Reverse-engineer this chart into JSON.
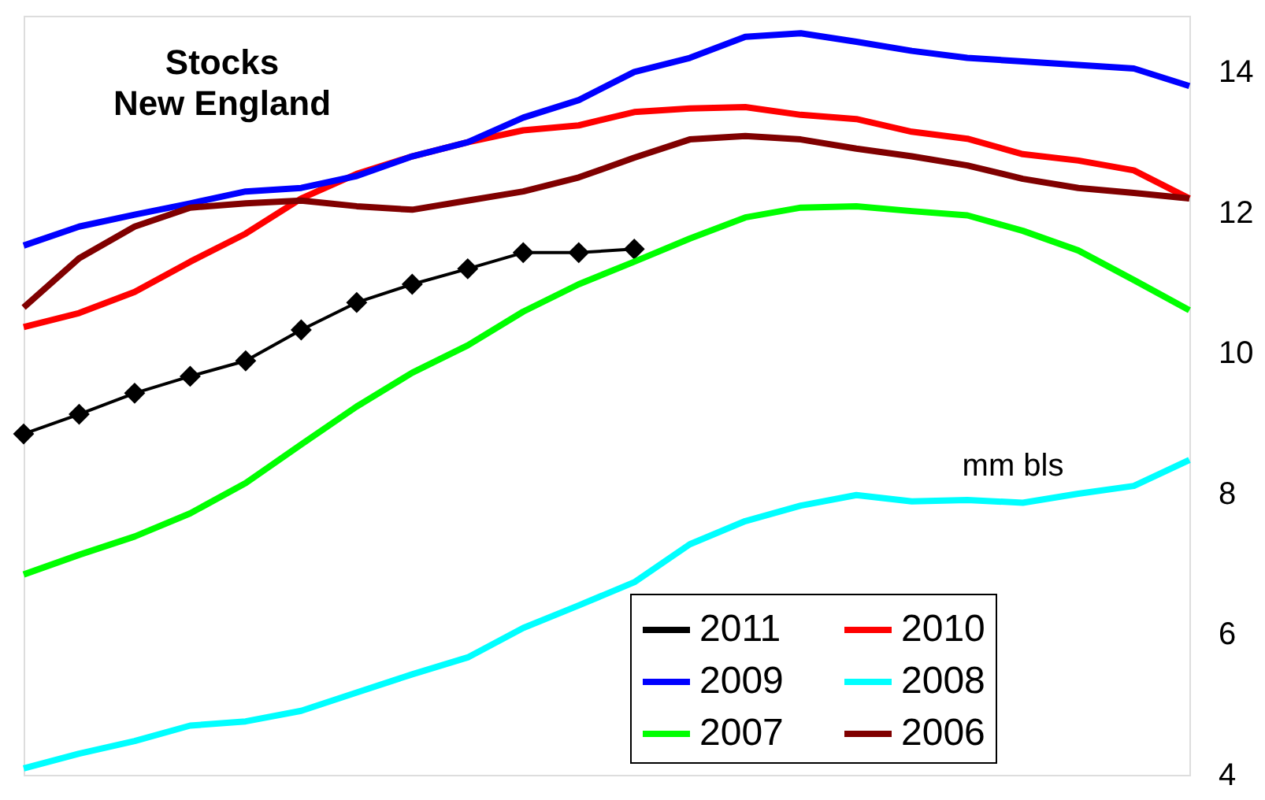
{
  "chart_data": {
    "type": "line",
    "title": "Stocks New England",
    "annotations": [
      "mm bls"
    ],
    "categories": [
      null,
      null,
      null,
      null,
      null,
      null,
      null,
      null,
      null,
      null,
      null,
      null,
      null,
      null,
      null,
      null,
      null,
      null,
      null,
      null,
      null,
      null
    ],
    "ylim": [
      4,
      14.8
    ],
    "yticks": [
      4,
      6,
      8,
      10,
      12,
      14
    ],
    "tick_labels": "y",
    "grid": false,
    "legend": "bottom right",
    "marker": "none",
    "line_style": "solid",
    "series": [
      {
        "name": "2011",
        "color": "#000000",
        "marker": "diamond",
        "values": [
          8.85,
          9.13,
          9.43,
          9.67,
          9.89,
          10.33,
          10.72,
          10.98,
          11.2,
          11.43,
          11.43,
          11.48,
          null,
          null,
          null,
          null,
          null,
          null,
          null,
          null,
          null,
          null
        ]
      },
      {
        "name": "2010",
        "color": "#ff0000",
        "values": [
          10.37,
          10.57,
          10.87,
          11.3,
          11.7,
          12.2,
          12.55,
          12.8,
          13.0,
          13.17,
          13.24,
          13.43,
          13.48,
          13.5,
          13.39,
          13.33,
          13.15,
          13.05,
          12.83,
          12.74,
          12.6,
          12.2
        ]
      },
      {
        "name": "2009",
        "color": "#0000ff",
        "values": [
          11.53,
          11.8,
          11.97,
          12.13,
          12.3,
          12.35,
          12.52,
          12.8,
          13.0,
          13.35,
          13.6,
          14.0,
          14.2,
          14.5,
          14.55,
          14.43,
          14.3,
          14.2,
          14.15,
          14.1,
          14.05,
          13.8
        ]
      },
      {
        "name": "2008",
        "color": "#00ffff",
        "values": [
          4.09,
          4.3,
          4.48,
          4.7,
          4.76,
          4.91,
          5.17,
          5.43,
          5.67,
          6.09,
          6.41,
          6.74,
          7.28,
          7.61,
          7.83,
          7.98,
          7.89,
          7.91,
          7.87,
          8.0,
          8.11,
          8.48
        ]
      },
      {
        "name": "2007",
        "color": "#00ff00",
        "values": [
          6.85,
          7.13,
          7.39,
          7.72,
          8.15,
          8.7,
          9.24,
          9.72,
          10.11,
          10.59,
          10.98,
          11.3,
          11.63,
          11.93,
          12.07,
          12.09,
          12.02,
          11.96,
          11.74,
          11.46,
          11.04,
          10.61
        ]
      },
      {
        "name": "2006",
        "color": "#800000",
        "values": [
          10.65,
          11.35,
          11.8,
          12.07,
          12.13,
          12.17,
          12.09,
          12.04,
          12.17,
          12.3,
          12.5,
          12.78,
          13.04,
          13.09,
          13.04,
          12.91,
          12.8,
          12.67,
          12.48,
          12.35,
          12.28,
          12.2
        ]
      }
    ]
  }
}
